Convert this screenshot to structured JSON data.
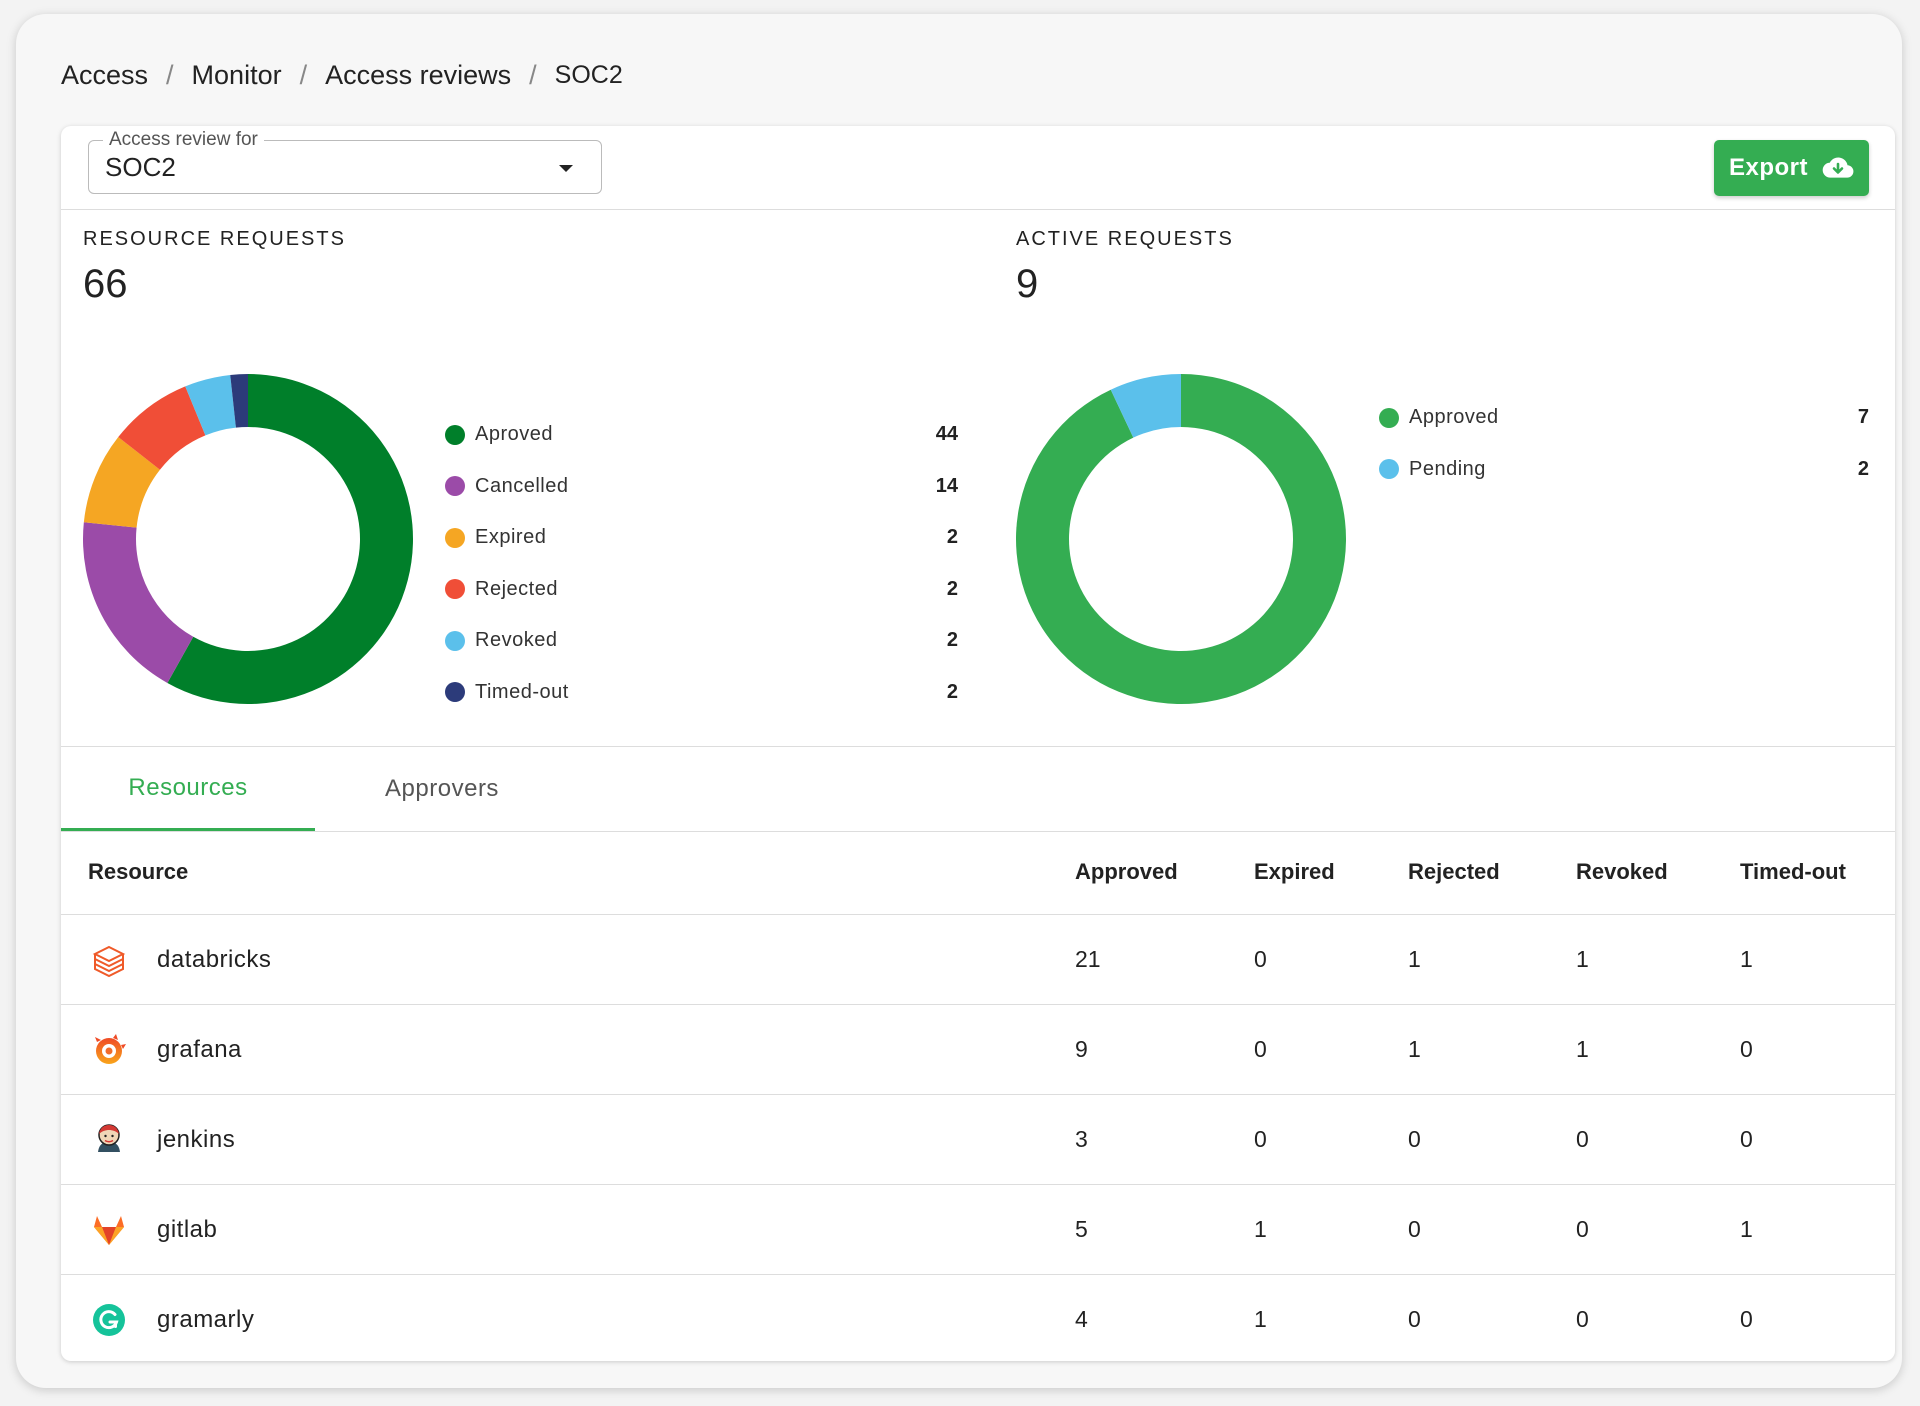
{
  "breadcrumb": [
    "Access",
    "Monitor",
    "Access reviews",
    "SOC2"
  ],
  "breadcrumb_separator": "/",
  "review_select": {
    "label": "Access review for",
    "value": "SOC2"
  },
  "export_label": "Export",
  "resource_requests": {
    "title": "RESOURCE REQUESTS",
    "total": "66",
    "chart_data": {
      "type": "pie",
      "donut": true,
      "categories": [
        "Aproved",
        "Cancelled",
        "Expired",
        "Rejected",
        "Revoked",
        "Timed-out"
      ],
      "values": [
        44,
        14,
        2,
        2,
        2,
        2
      ],
      "display_weights": [
        44,
        14,
        6.8,
        6.2,
        3.4,
        1.3
      ],
      "colors": [
        "#007f2a",
        "#9b4ba8",
        "#f5a623",
        "#f04e37",
        "#5bc0eb",
        "#2c3b7a"
      ]
    }
  },
  "active_requests": {
    "title": "ACTIVE REQUESTS",
    "total": "9",
    "chart_data": {
      "type": "pie",
      "donut": true,
      "categories": [
        "Approved",
        "Pending"
      ],
      "values": [
        7,
        2
      ],
      "display_weights": [
        93,
        7
      ],
      "colors": [
        "#34ad52",
        "#5bc0eb"
      ]
    }
  },
  "tabs": [
    "Resources",
    "Approvers"
  ],
  "active_tab": "Resources",
  "table": {
    "columns": [
      "Resource",
      "Approved",
      "Expired",
      "Rejected",
      "Revoked",
      "Timed-out"
    ],
    "rows": [
      {
        "icon": "databricks-icon",
        "name": "databricks",
        "values": [
          "21",
          "0",
          "1",
          "1",
          "1"
        ]
      },
      {
        "icon": "grafana-icon",
        "name": "grafana",
        "values": [
          "9",
          "0",
          "1",
          "1",
          "0"
        ]
      },
      {
        "icon": "jenkins-icon",
        "name": "jenkins",
        "values": [
          "3",
          "0",
          "0",
          "0",
          "0"
        ]
      },
      {
        "icon": "gitlab-icon",
        "name": "gitlab",
        "values": [
          "5",
          "1",
          "0",
          "0",
          "1"
        ]
      },
      {
        "icon": "grammarly-icon",
        "name": "gramarly",
        "values": [
          "4",
          "1",
          "0",
          "0",
          "0"
        ]
      }
    ]
  },
  "colors": {
    "accent": "#34ad52",
    "divider": "#dddddd"
  }
}
